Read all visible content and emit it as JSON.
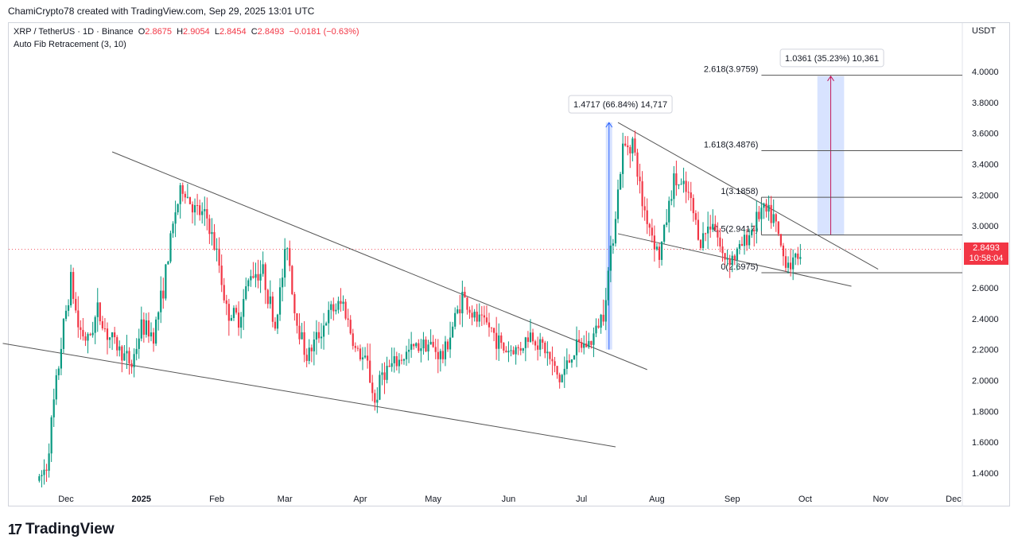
{
  "header": {
    "author_line": "ChamiCrypto78 created with TradingView.com, Sep 29, 2025 13:01 UTC"
  },
  "legend": {
    "symbol": "XRP / TetherUS · 1D · Binance",
    "open_label": "O",
    "open": "2.8675",
    "high_label": "H",
    "high": "2.9054",
    "low_label": "L",
    "low": "2.8454",
    "close_label": "C",
    "close": "2.8493",
    "change": "−0.0181 (−0.63%)",
    "indicator": "Auto Fib Retracement (3, 10)"
  },
  "price_scale": {
    "currency": "USDT",
    "current_price": "2.8493",
    "countdown": "10:58:04"
  },
  "footer": {
    "brand": "TradingView"
  },
  "colors": {
    "up": "#089981",
    "down": "#f23645",
    "measure": "#2962ff"
  },
  "chart_data": {
    "type": "candlestick",
    "xlabel": "",
    "ylabel": "",
    "ylim": [
      1.3,
      4.2
    ],
    "x_ticks": [
      "Dec",
      "2025",
      "Feb",
      "Mar",
      "Apr",
      "May",
      "Jun",
      "Jul",
      "Aug",
      "Sep",
      "Oct",
      "Nov",
      "Dec"
    ],
    "y_ticks": [
      "1.4000",
      "1.6000",
      "1.8000",
      "2.0000",
      "2.2000",
      "2.4000",
      "2.6000",
      "2.8000",
      "3.0000",
      "3.2000",
      "3.4000",
      "3.6000",
      "3.8000",
      "4.0000"
    ],
    "close_path": [
      [
        "2024-11-20",
        1.35
      ],
      [
        "2024-11-23",
        1.45
      ],
      [
        "2024-11-26",
        1.85
      ],
      [
        "2024-11-30",
        2.35
      ],
      [
        "2024-12-03",
        2.65
      ],
      [
        "2024-12-06",
        2.35
      ],
      [
        "2024-12-10",
        2.25
      ],
      [
        "2024-12-14",
        2.45
      ],
      [
        "2024-12-18",
        2.3
      ],
      [
        "2024-12-23",
        2.2
      ],
      [
        "2024-12-28",
        2.1
      ],
      [
        "2025-01-01",
        2.35
      ],
      [
        "2025-01-06",
        2.3
      ],
      [
        "2025-01-10",
        2.6
      ],
      [
        "2025-01-15",
        3.1
      ],
      [
        "2025-01-18",
        3.25
      ],
      [
        "2025-01-23",
        3.1
      ],
      [
        "2025-01-28",
        3.05
      ],
      [
        "2025-02-02",
        2.75
      ],
      [
        "2025-02-05",
        2.45
      ],
      [
        "2025-02-10",
        2.4
      ],
      [
        "2025-02-15",
        2.7
      ],
      [
        "2025-02-20",
        2.7
      ],
      [
        "2025-02-25",
        2.35
      ],
      [
        "2025-03-02",
        2.9
      ],
      [
        "2025-03-05",
        2.45
      ],
      [
        "2025-03-10",
        2.15
      ],
      [
        "2025-03-15",
        2.3
      ],
      [
        "2025-03-20",
        2.45
      ],
      [
        "2025-03-25",
        2.5
      ],
      [
        "2025-03-30",
        2.2
      ],
      [
        "2025-04-04",
        2.1
      ],
      [
        "2025-04-07",
        1.85
      ],
      [
        "2025-04-10",
        2.05
      ],
      [
        "2025-04-15",
        2.1
      ],
      [
        "2025-04-22",
        2.2
      ],
      [
        "2025-04-28",
        2.25
      ],
      [
        "2025-05-05",
        2.15
      ],
      [
        "2025-05-10",
        2.4
      ],
      [
        "2025-05-13",
        2.55
      ],
      [
        "2025-05-18",
        2.4
      ],
      [
        "2025-05-24",
        2.35
      ],
      [
        "2025-05-30",
        2.2
      ],
      [
        "2025-06-05",
        2.2
      ],
      [
        "2025-06-10",
        2.3
      ],
      [
        "2025-06-16",
        2.2
      ],
      [
        "2025-06-22",
        2.0
      ],
      [
        "2025-06-28",
        2.2
      ],
      [
        "2025-07-05",
        2.25
      ],
      [
        "2025-07-10",
        2.45
      ],
      [
        "2025-07-14",
        2.95
      ],
      [
        "2025-07-18",
        3.5
      ],
      [
        "2025-07-22",
        3.55
      ],
      [
        "2025-07-26",
        3.15
      ],
      [
        "2025-08-02",
        2.8
      ],
      [
        "2025-08-08",
        3.3
      ],
      [
        "2025-08-14",
        3.2
      ],
      [
        "2025-08-19",
        2.9
      ],
      [
        "2025-08-24",
        3.05
      ],
      [
        "2025-08-28",
        2.8
      ],
      [
        "2025-09-02",
        2.8
      ],
      [
        "2025-09-08",
        2.95
      ],
      [
        "2025-09-13",
        3.1
      ],
      [
        "2025-09-18",
        3.05
      ],
      [
        "2025-09-22",
        2.8
      ],
      [
        "2025-09-26",
        2.75
      ],
      [
        "2025-09-29",
        2.85
      ]
    ],
    "fib_levels": [
      {
        "label": "2.618(3.9759)",
        "value": 3.9759
      },
      {
        "label": "1.618(3.4876)",
        "value": 3.4876
      },
      {
        "label": "1(3.1858)",
        "value": 3.1858
      },
      {
        "label": "0.5(2.9417)",
        "value": 2.9417
      },
      {
        "label": "0(2.6975)",
        "value": 2.6975
      }
    ],
    "measurements": [
      {
        "label": "1.4717 (66.84%) 14,717",
        "from": 2.2,
        "to": 3.67
      },
      {
        "label": "1.0361 (35.23%) 10,361",
        "from": 2.94,
        "to": 3.97
      }
    ],
    "trendlines": [
      {
        "name": "upper-2025",
        "p1": [
          "2024-12-20",
          3.48
        ],
        "p2": [
          "2025-07-28",
          2.07
        ]
      },
      {
        "name": "lower-2025",
        "p1": [
          "2024-11-05",
          2.24
        ],
        "p2": [
          "2025-07-15",
          1.57
        ]
      },
      {
        "name": "upper-recent",
        "p1": [
          "2025-07-16",
          3.67
        ],
        "p2": [
          "2025-10-31",
          2.72
        ]
      },
      {
        "name": "lower-recent",
        "p1": [
          "2025-07-16",
          2.95
        ],
        "p2": [
          "2025-10-20",
          2.61
        ]
      }
    ]
  }
}
